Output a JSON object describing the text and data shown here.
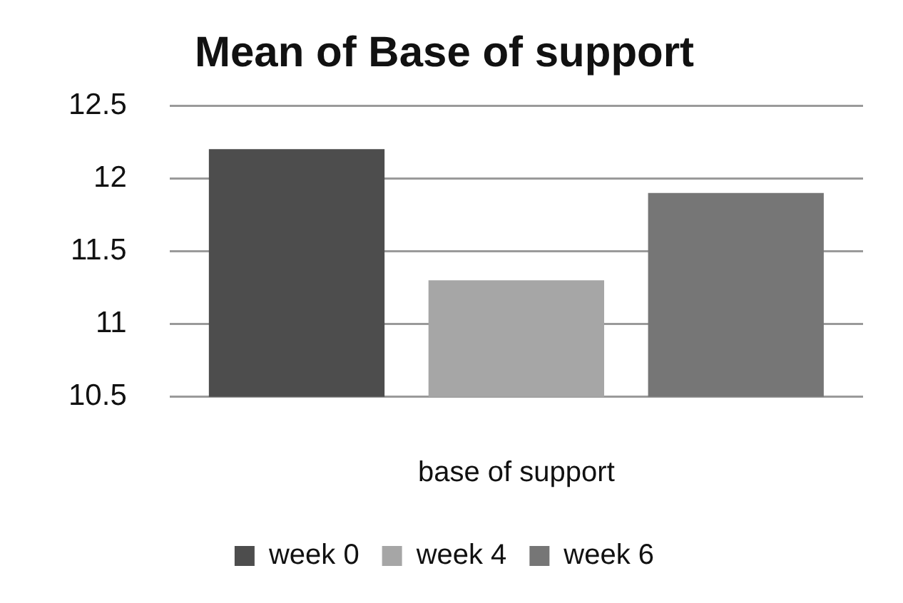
{
  "chart_data": {
    "type": "bar",
    "title": "Mean of Base of support",
    "xlabel": "base of support",
    "categories": [
      null
    ],
    "series": [
      {
        "name": "week 0",
        "color": "#4d4d4d",
        "values": [
          12.2
        ]
      },
      {
        "name": "week 4",
        "color": "#a6a6a6",
        "values": [
          11.3
        ]
      },
      {
        "name": "week 6",
        "color": "#767676",
        "values": [
          11.9
        ]
      }
    ],
    "ylim": [
      10.5,
      12.5
    ],
    "yticks": [
      10.5,
      11,
      11.5,
      12,
      12.5
    ],
    "grid": "y",
    "legend": "bottom"
  }
}
